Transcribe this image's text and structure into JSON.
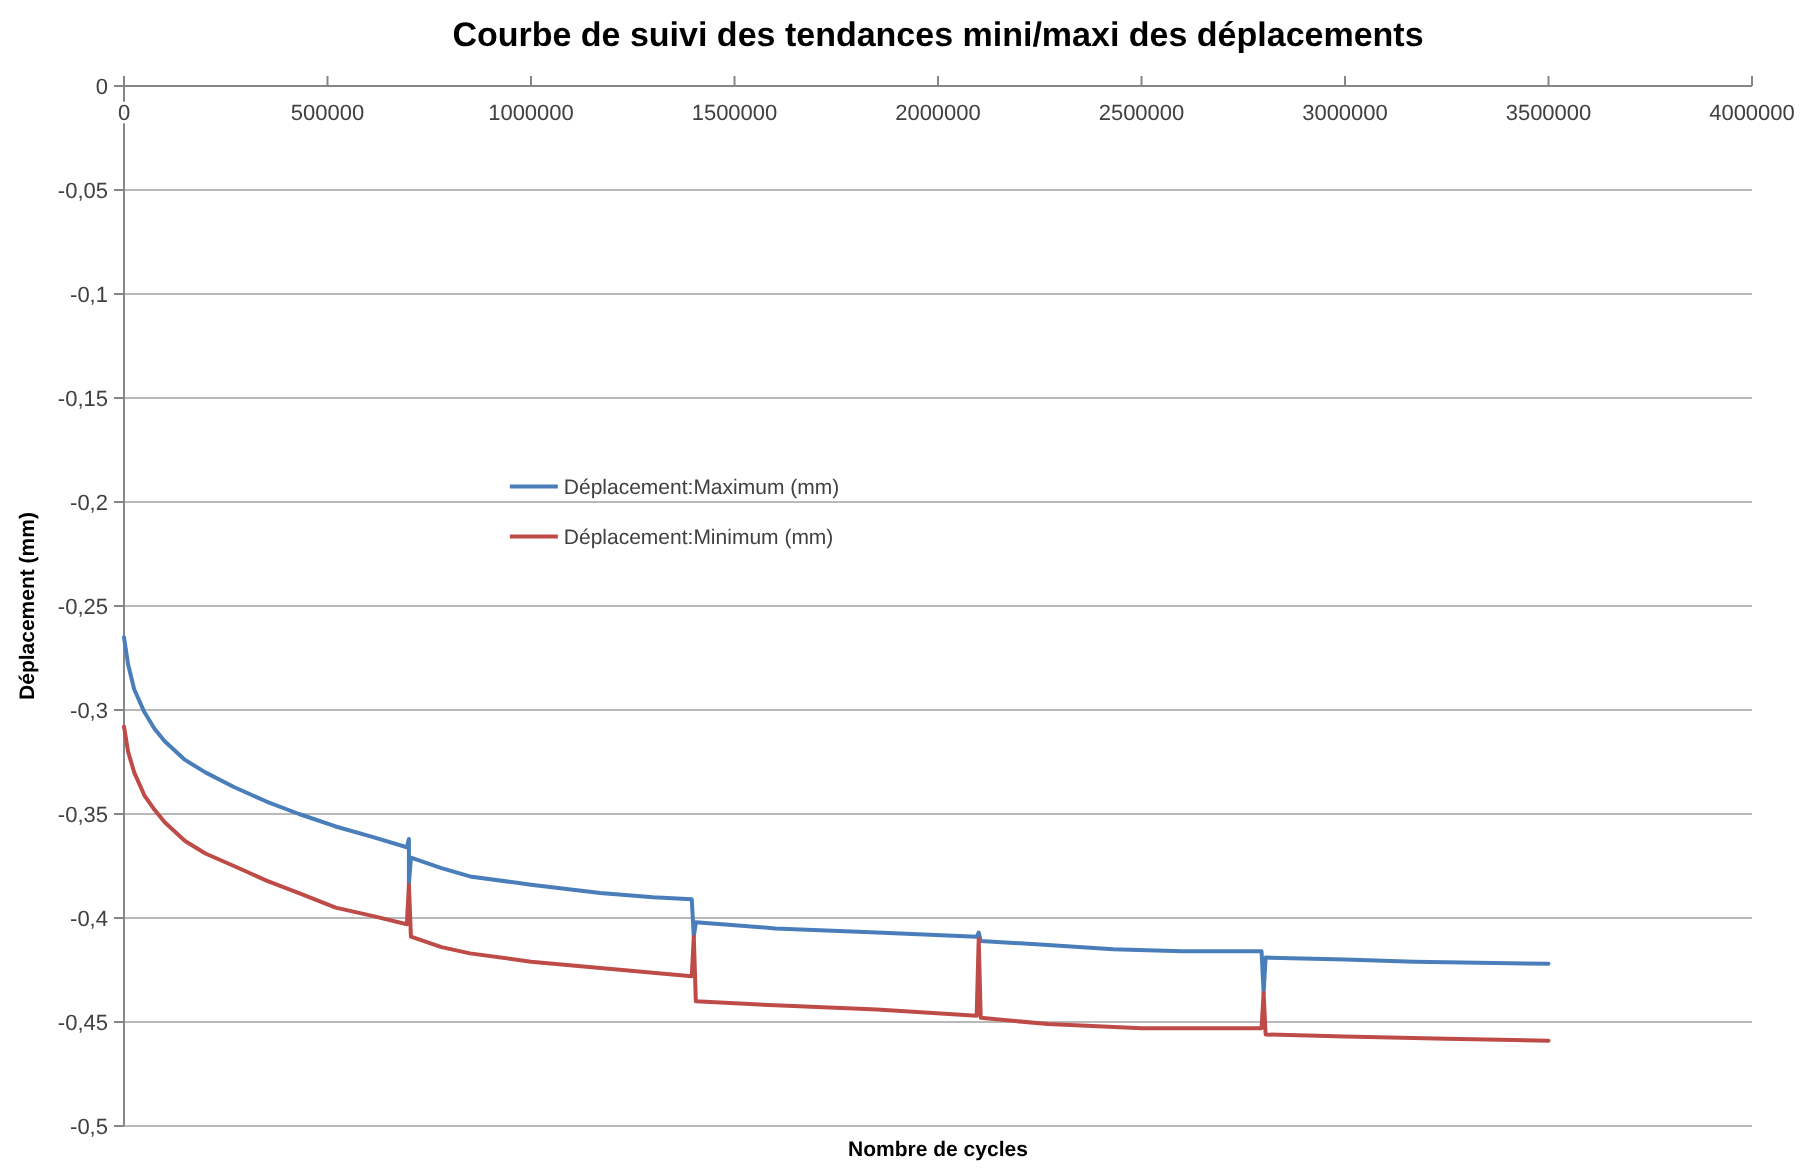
{
  "chart_data": {
    "type": "line",
    "title": "Courbe de suivi des tendances mini/maxi des déplacements",
    "xlabel": "Nombre de cycles",
    "ylabel": "Déplacement (mm)",
    "xlim": [
      0,
      4000000
    ],
    "xticks": [
      0,
      500000,
      1000000,
      1500000,
      2000000,
      2500000,
      3000000,
      3500000,
      4000000
    ],
    "ylim": [
      -0.5,
      0
    ],
    "yticks": [
      0,
      {
        "value": -0.05,
        "label": "-0,05"
      },
      {
        "value": -0.1,
        "label": "-0,1"
      },
      {
        "value": -0.15,
        "label": "-0,15"
      },
      {
        "value": -0.2,
        "label": "-0,2"
      },
      {
        "value": -0.25,
        "label": "-0,25"
      },
      {
        "value": -0.3,
        "label": "-0,3"
      },
      {
        "value": -0.35,
        "label": "-0,35"
      },
      {
        "value": -0.4,
        "label": "-0,4"
      },
      {
        "value": -0.45,
        "label": "-0,45"
      },
      {
        "value": -0.5,
        "label": "-0,5"
      }
    ],
    "grid": "y",
    "legend": "left",
    "series": [
      {
        "name": "Déplacement:Maximum (mm)",
        "color": "#4a7ebb",
        "x": [
          0,
          10000,
          25000,
          50000,
          75000,
          100000,
          150000,
          200000,
          270000,
          350000,
          430000,
          520000,
          610000,
          695000,
          700000,
          700000,
          705000,
          780000,
          850000,
          1000000,
          1170000,
          1300000,
          1395000,
          1400000,
          1405000,
          1600000,
          1850000,
          2095000,
          2100000,
          2105000,
          2270000,
          2430000,
          2600000,
          2795000,
          2800000,
          2805000,
          3000000,
          3170000,
          3500000
        ],
        "values": [
          -0.265,
          -0.278,
          -0.29,
          -0.301,
          -0.309,
          -0.315,
          -0.324,
          -0.33,
          -0.337,
          -0.344,
          -0.35,
          -0.356,
          -0.361,
          -0.366,
          -0.362,
          -0.384,
          -0.371,
          -0.376,
          -0.38,
          -0.384,
          -0.388,
          -0.39,
          -0.391,
          -0.409,
          -0.402,
          -0.405,
          -0.407,
          -0.409,
          -0.407,
          -0.411,
          -0.413,
          -0.415,
          -0.416,
          -0.416,
          -0.436,
          -0.419,
          -0.42,
          -0.421,
          -0.422
        ]
      },
      {
        "name": "Déplacement:Minimum (mm)",
        "color": "#be4b48",
        "x": [
          0,
          10000,
          25000,
          50000,
          75000,
          100000,
          150000,
          200000,
          270000,
          350000,
          430000,
          520000,
          610000,
          695000,
          700000,
          705000,
          780000,
          850000,
          1000000,
          1170000,
          1395000,
          1400000,
          1405000,
          1600000,
          1850000,
          2095000,
          2100000,
          2105000,
          2270000,
          2500000,
          2795000,
          2800000,
          2805000,
          3000000,
          3250000,
          3500000
        ],
        "values": [
          -0.308,
          -0.32,
          -0.33,
          -0.341,
          -0.348,
          -0.354,
          -0.363,
          -0.369,
          -0.375,
          -0.382,
          -0.388,
          -0.395,
          -0.399,
          -0.403,
          -0.384,
          -0.409,
          -0.414,
          -0.417,
          -0.421,
          -0.424,
          -0.428,
          -0.409,
          -0.44,
          -0.442,
          -0.444,
          -0.447,
          -0.41,
          -0.448,
          -0.451,
          -0.453,
          -0.453,
          -0.436,
          -0.456,
          -0.457,
          -0.458,
          -0.459
        ]
      }
    ]
  }
}
